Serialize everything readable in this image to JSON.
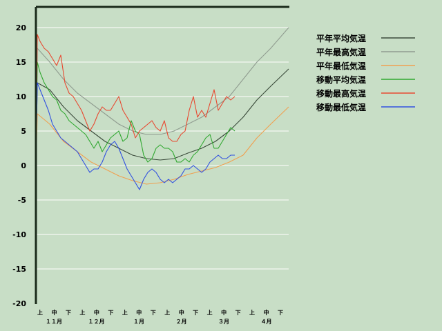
{
  "chart_data": {
    "type": "line",
    "title": "",
    "xlabel": "",
    "ylabel": "",
    "ylim": [
      -20,
      20
    ],
    "yticks": [
      "20",
      "15",
      "10",
      "5",
      "0",
      "-5",
      "-10",
      "-15",
      "-20"
    ],
    "ytick_values": [
      20,
      15,
      10,
      5,
      0,
      -5,
      -10,
      -15,
      -20
    ],
    "grid": true,
    "legend_position": "top-right",
    "x_unit": "day index from Oct 31",
    "xlim": [
      0,
      183
    ],
    "period_labels": [
      "上",
      "中",
      "下",
      "上",
      "中",
      "下",
      "上",
      "中",
      "下",
      "上",
      "中",
      "下",
      "上",
      "中",
      "下",
      "上",
      "中",
      "下"
    ],
    "month_labels": [
      "１１月",
      "１２月",
      "１月",
      "２月",
      "３月",
      "４月"
    ],
    "series": [
      {
        "name": "平年平均気温",
        "color": "#3a4a3a",
        "x": [
          0,
          1,
          10,
          20,
          30,
          40,
          50,
          60,
          70,
          80,
          90,
          100,
          110,
          120,
          130,
          140,
          150,
          160,
          170,
          183
        ],
        "values": [
          0,
          12,
          11,
          8.5,
          6.5,
          5,
          3.5,
          2.5,
          1.5,
          1,
          0.8,
          1,
          1.8,
          2.5,
          3.5,
          5,
          7,
          9.5,
          11.5,
          14
        ]
      },
      {
        "name": "平年最高気温",
        "color": "#909c90",
        "x": [
          0,
          1,
          10,
          20,
          30,
          40,
          50,
          60,
          70,
          80,
          90,
          100,
          110,
          120,
          130,
          140,
          150,
          160,
          170,
          183
        ],
        "values": [
          0,
          17,
          15,
          12.5,
          10.5,
          9,
          7.5,
          6,
          5,
          4.5,
          4.5,
          5,
          6,
          7,
          8.5,
          10,
          12.5,
          15,
          17,
          20
        ]
      },
      {
        "name": "平年最低気温",
        "color": "#f0a050",
        "x": [
          0,
          1,
          10,
          20,
          30,
          40,
          50,
          60,
          70,
          80,
          90,
          100,
          110,
          120,
          130,
          140,
          150,
          160,
          170,
          183
        ],
        "values": [
          0,
          7.5,
          6,
          3.5,
          2,
          0.5,
          -0.5,
          -1.5,
          -2.2,
          -2.7,
          -2.5,
          -2,
          -1.3,
          -0.8,
          -0.3,
          0.5,
          1.5,
          4,
          6,
          8.5
        ]
      },
      {
        "name": "移動平均気温",
        "color": "#30a830",
        "x": [
          0,
          1,
          3,
          6,
          9,
          12,
          15,
          18,
          21,
          24,
          27,
          30,
          33,
          36,
          39,
          42,
          45,
          48,
          51,
          54,
          57,
          60,
          63,
          66,
          69,
          72,
          75,
          78,
          81,
          84,
          87,
          90,
          93,
          96,
          99,
          102,
          105,
          108,
          111,
          114,
          117,
          120,
          123,
          126,
          129,
          132,
          135,
          138,
          141,
          144
        ],
        "values": [
          0,
          15,
          13.5,
          12,
          11,
          10,
          9.5,
          8,
          7.5,
          6.5,
          6,
          5.5,
          5,
          4.5,
          3.5,
          2.5,
          3.5,
          2,
          3,
          4,
          4.5,
          5,
          3.5,
          4,
          6.5,
          5,
          4.5,
          1.5,
          0.5,
          1,
          2.5,
          3,
          2.5,
          2.5,
          2,
          0.5,
          0.5,
          1,
          0.5,
          1.5,
          2,
          3,
          4,
          4.5,
          2.5,
          2.5,
          3.5,
          4.5,
          5.5,
          5
        ]
      },
      {
        "name": "移動最高気温",
        "color": "#e84830",
        "x": [
          0,
          1,
          3,
          6,
          9,
          12,
          15,
          18,
          21,
          24,
          27,
          30,
          33,
          36,
          39,
          42,
          45,
          48,
          51,
          54,
          57,
          60,
          63,
          66,
          69,
          72,
          75,
          78,
          81,
          84,
          87,
          90,
          93,
          96,
          99,
          102,
          105,
          108,
          111,
          114,
          117,
          120,
          123,
          126,
          129,
          132,
          135,
          138,
          141,
          144
        ],
        "values": [
          0,
          19,
          18,
          17,
          16.5,
          15.5,
          14.5,
          16,
          12,
          10.5,
          10,
          9,
          8,
          6.5,
          5,
          6,
          7.5,
          8.5,
          8,
          8,
          9,
          10,
          8,
          7,
          6,
          4,
          5,
          5.5,
          6,
          6.5,
          5.5,
          5,
          6.5,
          4,
          3.5,
          3.5,
          4.5,
          5,
          8,
          10,
          7,
          8,
          7,
          9,
          11,
          8,
          9,
          10,
          9.5,
          10
        ]
      },
      {
        "name": "移動最低気温",
        "color": "#3050e0",
        "x": [
          0,
          1,
          3,
          6,
          9,
          12,
          15,
          18,
          21,
          24,
          27,
          30,
          33,
          36,
          39,
          42,
          45,
          48,
          51,
          54,
          57,
          60,
          63,
          66,
          69,
          72,
          75,
          78,
          81,
          84,
          87,
          90,
          93,
          96,
          99,
          102,
          105,
          108,
          111,
          114,
          117,
          120,
          123,
          126,
          129,
          132,
          135,
          138,
          141,
          144
        ],
        "values": [
          0,
          12,
          11,
          9.5,
          8,
          6,
          5,
          4,
          3.5,
          3,
          2.5,
          2,
          1,
          0,
          -1,
          -0.5,
          -0.5,
          0.5,
          2,
          3,
          3.5,
          2.5,
          1,
          -0.5,
          -1.5,
          -2.5,
          -3.5,
          -2,
          -1,
          -0.5,
          -1,
          -2,
          -2.5,
          -2,
          -2.5,
          -2,
          -1.5,
          -0.5,
          -0.5,
          0,
          -0.5,
          -1,
          -0.5,
          0.5,
          1,
          1.5,
          1,
          1,
          1.5,
          1.5
        ]
      }
    ]
  }
}
